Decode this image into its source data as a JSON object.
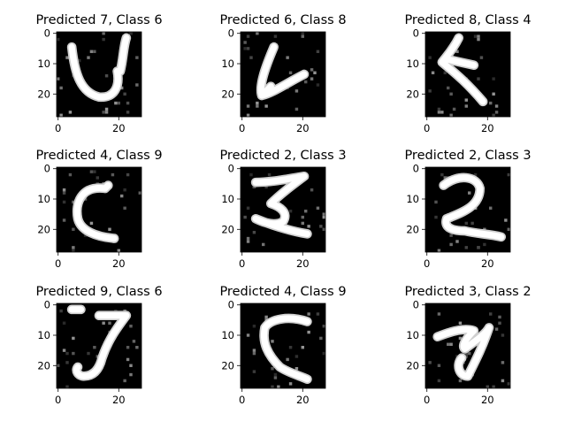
{
  "chart_data": {
    "type": "image-grid",
    "grid": {
      "rows": 3,
      "cols": 3
    },
    "image_size": [
      28,
      28
    ],
    "colormap": "gray",
    "xticks": [
      0,
      20
    ],
    "yticks": [
      0,
      10,
      20
    ],
    "panels": [
      {
        "title": "Predicted 7, Class 6",
        "predicted": 7,
        "actual": 6,
        "glyph": "u-shape"
      },
      {
        "title": "Predicted 6, Class 8",
        "predicted": 6,
        "actual": 8,
        "glyph": "v-hook"
      },
      {
        "title": "Predicted 8, Class 4",
        "predicted": 8,
        "actual": 4,
        "glyph": "lt-shape"
      },
      {
        "title": "Predicted 4, Class 9",
        "predicted": 4,
        "actual": 9,
        "glyph": "c-shape"
      },
      {
        "title": "Predicted 2, Class 3",
        "predicted": 2,
        "actual": 3,
        "glyph": "zig"
      },
      {
        "title": "Predicted 2, Class 3",
        "predicted": 2,
        "actual": 3,
        "glyph": "two"
      },
      {
        "title": "Predicted 9, Class 6",
        "predicted": 9,
        "actual": 6,
        "glyph": "j-shape"
      },
      {
        "title": "Predicted 4, Class 9",
        "predicted": 4,
        "actual": 9,
        "glyph": "c-flat"
      },
      {
        "title": "Predicted 3, Class 2",
        "predicted": 3,
        "actual": 2,
        "glyph": "three"
      }
    ]
  }
}
